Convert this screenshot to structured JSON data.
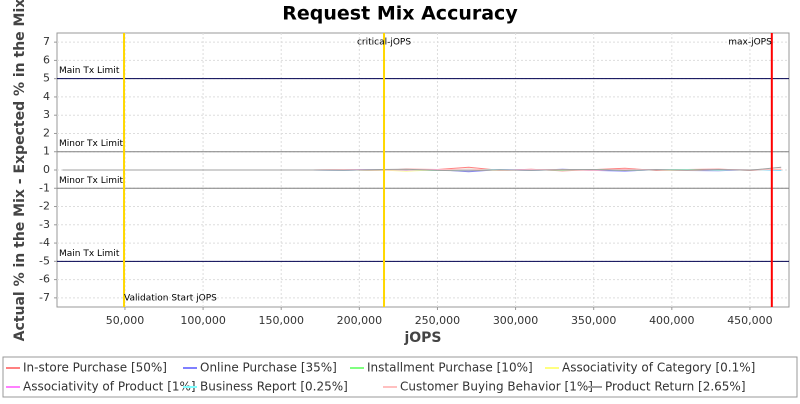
{
  "chart_data": {
    "type": "line",
    "title": "Request Mix Accuracy",
    "x_label": "jOPS",
    "y_label": "Actual % in the Mix - Expected % in the Mix",
    "xlim": [
      6500,
      475000
    ],
    "ylim": [
      -7.5,
      7.5
    ],
    "xticks": [
      {
        "value": 50000,
        "label": "50,000"
      },
      {
        "value": 100000,
        "label": "100,000"
      },
      {
        "value": 150000,
        "label": "150,000"
      },
      {
        "value": 200000,
        "label": "200,000"
      },
      {
        "value": 250000,
        "label": "250,000"
      },
      {
        "value": 300000,
        "label": "300,000"
      },
      {
        "value": 350000,
        "label": "350,000"
      },
      {
        "value": 400000,
        "label": "400,000"
      },
      {
        "value": 450000,
        "label": "450,000"
      }
    ],
    "yticks": [
      -7,
      -6,
      -5,
      -4,
      -3,
      -2,
      -1,
      0,
      1,
      2,
      3,
      4,
      5,
      6,
      7
    ],
    "grid": true,
    "thresholds": [
      {
        "label": "Main Tx Limit",
        "value": 5,
        "color": "#000050"
      },
      {
        "label": "Minor Tx Limit",
        "value": 1,
        "color": "#808080"
      },
      {
        "label": "Minor Tx Limit",
        "value": -1,
        "color": "#808080"
      },
      {
        "label": "Main Tx Limit",
        "value": -5,
        "color": "#000050"
      }
    ],
    "markers": [
      {
        "label": "Validation Start jOPS",
        "value": 49400,
        "color": "#ffd700"
      },
      {
        "label": "critical-jOPS",
        "value": 215800,
        "color": "#ffd700"
      },
      {
        "label": "max-jOPS",
        "value": 464000,
        "color": "#ff0000"
      }
    ],
    "x": [
      10000,
      30000,
      50000,
      70000,
      90000,
      110000,
      130000,
      150000,
      170000,
      190000,
      210000,
      230000,
      250000,
      270000,
      290000,
      310000,
      330000,
      350000,
      370000,
      390000,
      410000,
      430000,
      450000,
      470000
    ],
    "series": [
      {
        "name": "In-store Purchase [50%]",
        "color": "#ff8080",
        "values": [
          0,
          0,
          0,
          0,
          0,
          0,
          0,
          0,
          0,
          0.02,
          -0.03,
          0.05,
          0.03,
          0.15,
          -0.02,
          0.04,
          -0.05,
          0.02,
          0.1,
          -0.03,
          0.03,
          0.05,
          -0.02,
          0.04
        ]
      },
      {
        "name": "Online Purchase [35%]",
        "color": "#8080ff",
        "values": [
          0,
          0,
          0,
          0,
          0,
          0,
          0,
          0,
          0,
          -0.02,
          0.03,
          -0.04,
          0.02,
          -0.1,
          0.03,
          -0.03,
          0.04,
          -0.02,
          -0.06,
          0.02,
          -0.03,
          -0.04,
          0.02,
          -0.03
        ]
      },
      {
        "name": "Installment Purchase [10%]",
        "color": "#80ff80",
        "values": [
          0,
          0,
          0,
          0,
          0,
          0,
          0,
          0,
          0,
          0.01,
          -0.02,
          0.02,
          -0.03,
          0.04,
          -0.01,
          0.02,
          -0.02,
          0.03,
          -0.02,
          0.01,
          0.02,
          -0.01,
          0.03,
          0.01
        ]
      },
      {
        "name": "Associativity of Category [0.1%]",
        "color": "#ffff80",
        "values": [
          0,
          0,
          0,
          0,
          0,
          0,
          0,
          0,
          0,
          0,
          0.01,
          -0.06,
          0.01,
          0,
          -0.01,
          0.01,
          0,
          -0.01,
          0.01,
          0,
          -0.03,
          0.01,
          0,
          0.01
        ]
      },
      {
        "name": "Associativity of Product [1%]",
        "color": "#ff80ff",
        "values": [
          0,
          0,
          0,
          0,
          0,
          0,
          0,
          0,
          0,
          0.01,
          0.02,
          -0.01,
          0.03,
          -0.02,
          0.01,
          0.02,
          0.01,
          -0.02,
          0.02,
          0.01,
          -0.01,
          0.02,
          0.01,
          0.02
        ]
      },
      {
        "name": "Business Report [0.25%]",
        "color": "#80ffff",
        "values": [
          0,
          0,
          0,
          0,
          0,
          0,
          0,
          0,
          0,
          -0.01,
          0.01,
          0.02,
          -0.01,
          0.01,
          0.02,
          -0.01,
          0.01,
          0.01,
          -0.02,
          0.01,
          0.01,
          -0.01,
          0.02,
          -0.01
        ]
      },
      {
        "name": "Customer Buying Behavior [1%]",
        "color": "#ffc0c0",
        "values": [
          0,
          0,
          0,
          0,
          0,
          0,
          0,
          0,
          0,
          0.02,
          -0.01,
          0.03,
          0.01,
          0.05,
          -0.02,
          0.01,
          0.03,
          -0.01,
          0.04,
          0.01,
          -0.02,
          0.02,
          0.01,
          0.03
        ]
      },
      {
        "name": "Product Return [2.65%]",
        "color": "#a0a0a0",
        "values": [
          0,
          0,
          0,
          0,
          0,
          0,
          0,
          0,
          0,
          -0.01,
          0.02,
          0.04,
          -0.02,
          -0.05,
          0.01,
          -0.02,
          0.02,
          0.03,
          -0.03,
          0.02,
          -0.01,
          0.03,
          -0.01,
          0.15
        ]
      }
    ]
  }
}
